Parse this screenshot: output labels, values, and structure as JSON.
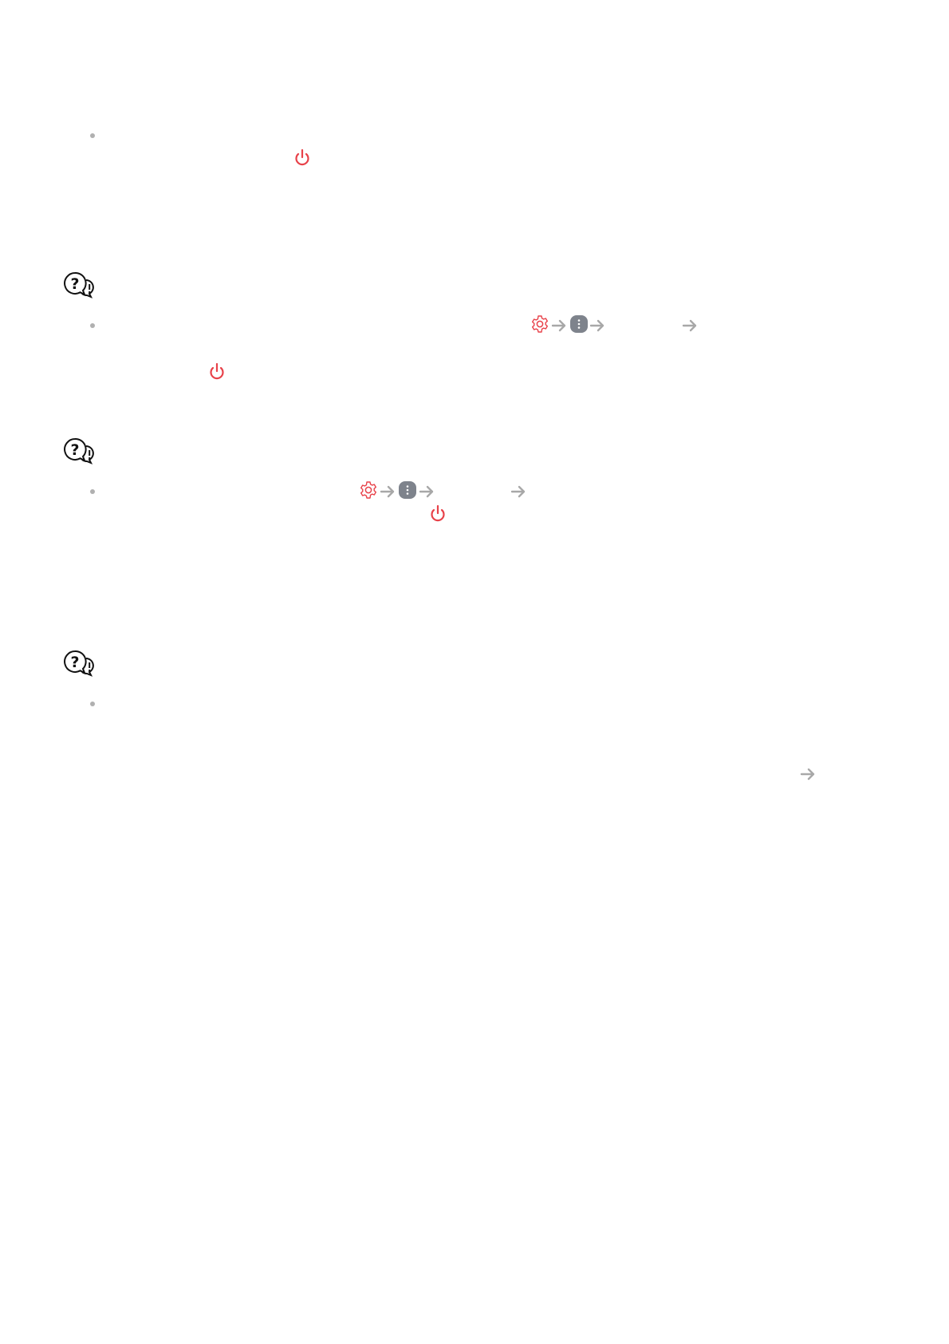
{
  "colors": {
    "accent": "#e8424a",
    "arrow": "#a8a8a8",
    "more_button": "#7e838c",
    "bullet": "#b0b0b0",
    "qa_icon": "#111111"
  },
  "icons": {
    "power": "power-icon",
    "settings": "gear-icon",
    "more": "more-vertical-icon",
    "arrow": "arrow-right-icon",
    "qa": "question-exclamation-bubbles-icon"
  }
}
